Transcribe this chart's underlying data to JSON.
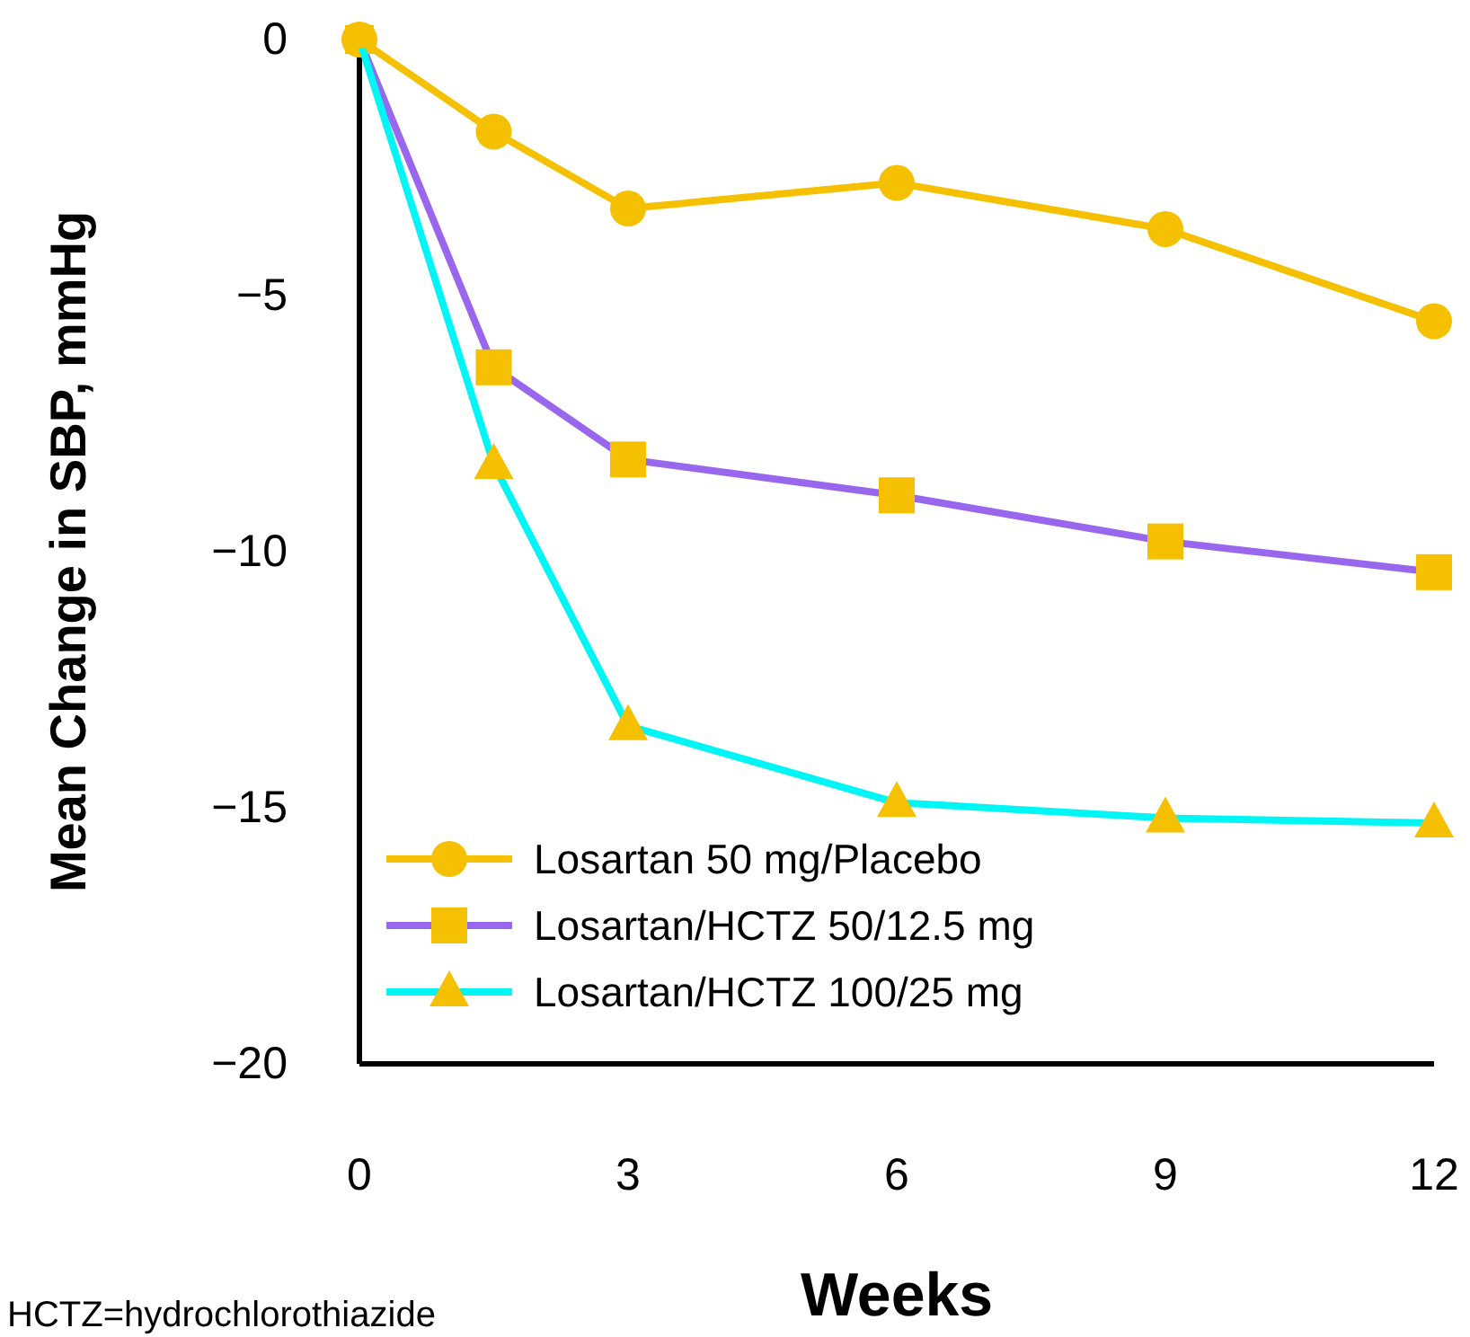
{
  "chart_data": {
    "type": "line",
    "xlabel": "Weeks",
    "ylabel": "Mean Change in SBP, mmHg",
    "x": [
      0,
      1.5,
      3,
      6,
      9,
      12
    ],
    "xlim": [
      0,
      12
    ],
    "xticks": [
      0,
      3,
      6,
      9,
      12
    ],
    "ylim": [
      -20,
      0
    ],
    "yticks": [
      {
        "value": 0,
        "label": "0"
      },
      {
        "value": -5,
        "label": "−5"
      },
      {
        "value": -10,
        "label": "−10"
      },
      {
        "value": -15,
        "label": "−15"
      },
      {
        "value": -20,
        "label": "−20"
      }
    ],
    "grid": false,
    "legend": "bottom left",
    "line_style": "solid",
    "series": [
      {
        "name": "Losartan 50 mg/Placebo",
        "color": "#f5c000",
        "marker": "circle",
        "colors": [
          "#f5c000",
          "#f5c000",
          "#f5c000",
          "#f5c000",
          "#f5c000",
          "#f5c000"
        ],
        "values": [
          0,
          -1.8,
          -3.3,
          -2.8,
          -3.7,
          -5.5
        ]
      },
      {
        "name": "Losartan/HCTZ 50/12.5 mg",
        "color": "#9966ee",
        "marker": "square",
        "colors": [
          "#f5c000",
          "#f5c000",
          "#f5c000",
          "#f5c000",
          "#f5c000",
          "#f5c000"
        ],
        "values": [
          0,
          -6.4,
          -8.2,
          -8.9,
          -9.8,
          -10.4
        ]
      },
      {
        "name": "Losartan/HCTZ 100/25 mg",
        "color": "#00f5f5",
        "marker": "triangle",
        "colors": [
          "#f5c000",
          "#f5c000",
          "#f5c000",
          "#f5c000",
          "#f5c000",
          "#f5c000"
        ],
        "values": [
          0,
          -8.3,
          -13.4,
          -14.9,
          -15.2,
          -15.3
        ]
      }
    ],
    "annotations": [
      "HCTZ=hydrochlorothiazide"
    ]
  }
}
